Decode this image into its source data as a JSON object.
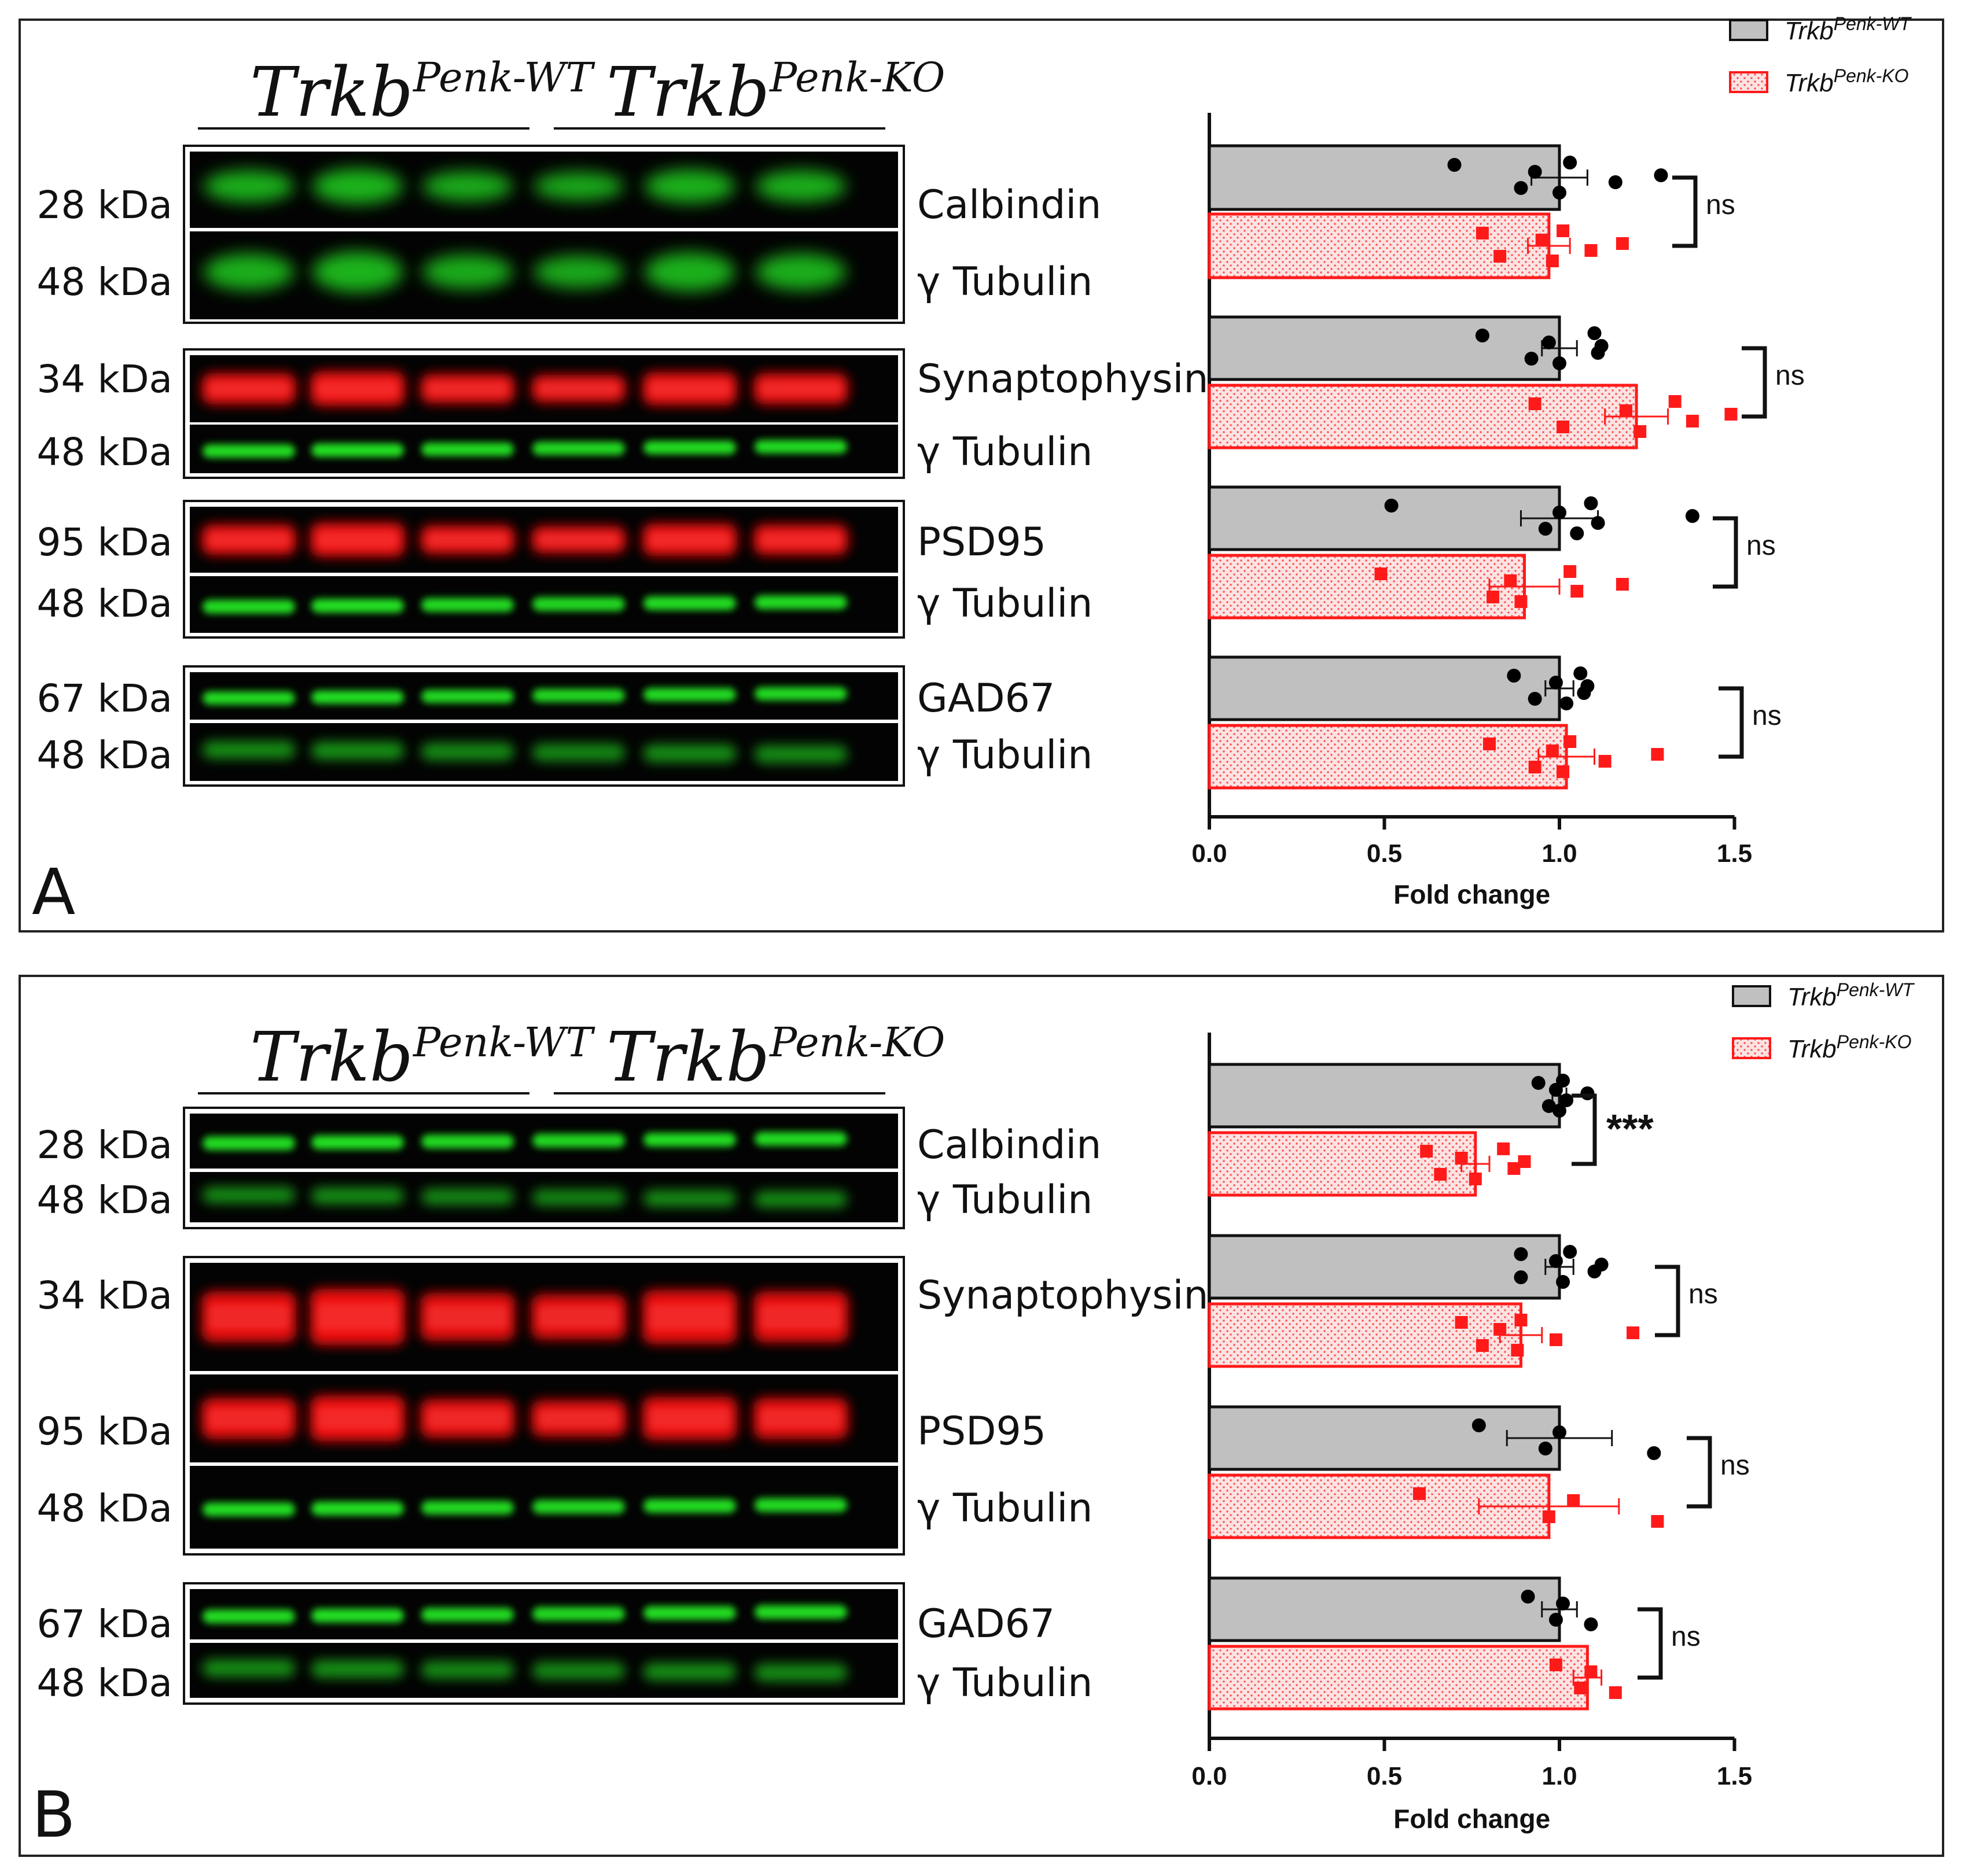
{
  "colors": {
    "wt_bar": "#c0c0c0",
    "ko_bar": "#f7d4d4",
    "ko_edge": "#ff1a1a",
    "wt_point": "#000000",
    "ko_point": "#ff1a1a",
    "green_band": "#22e022",
    "red_band": "#ee1010"
  },
  "genotypes": {
    "wt": {
      "base": "Trkb",
      "sup": "Penk-WT"
    },
    "ko": {
      "base": "Trkb",
      "sup": "Penk-KO"
    }
  },
  "panels": [
    {
      "label": "A",
      "blots": [
        {
          "mw": "28 kDa",
          "protein": "Calbindin",
          "color": "green",
          "style": "blob"
        },
        {
          "mw": "48 kDa",
          "protein": "γ Tubulin",
          "color": "green",
          "style": "blob"
        },
        {
          "mw": "34 kDa",
          "protein": "Synaptophysin",
          "color": "red",
          "style": "thick"
        },
        {
          "mw": "48 kDa",
          "protein": "γ Tubulin",
          "color": "green",
          "style": "thin"
        },
        {
          "mw": "95 kDa",
          "protein": "PSD95",
          "color": "red",
          "style": "thick"
        },
        {
          "mw": "48 kDa",
          "protein": "γ Tubulin",
          "color": "green",
          "style": "thin"
        },
        {
          "mw": "67 kDa",
          "protein": "GAD67",
          "color": "green",
          "style": "thin"
        },
        {
          "mw": "48 kDa",
          "protein": "γ Tubulin",
          "color": "green",
          "style": "soft"
        }
      ]
    },
    {
      "label": "B",
      "blots": [
        {
          "mw": "28 kDa",
          "protein": "Calbindin",
          "color": "green",
          "style": "thin"
        },
        {
          "mw": "48 kDa",
          "protein": "γ Tubulin",
          "color": "green",
          "style": "soft"
        },
        {
          "mw": "34 kDa",
          "protein": "Synaptophysin",
          "color": "red",
          "style": "thick"
        },
        {
          "mw": "95 kDa",
          "protein": "PSD95",
          "color": "red",
          "style": "thick"
        },
        {
          "mw": "48 kDa",
          "protein": "γ Tubulin",
          "color": "green",
          "style": "thin"
        },
        {
          "mw": "67 kDa",
          "protein": "GAD67",
          "color": "green",
          "style": "thin"
        },
        {
          "mw": "48 kDa",
          "protein": "γ Tubulin",
          "color": "green",
          "style": "soft"
        }
      ]
    }
  ],
  "chart_data": [
    {
      "type": "bar",
      "orientation": "horizontal",
      "panel": "A",
      "xlabel": "Fold change",
      "xlim": [
        0,
        1.5
      ],
      "xticks": [
        "0.0",
        "0.5",
        "1.0",
        "1.5"
      ],
      "legend": [
        "TrkbPenk-WT",
        "TrkbPenk-KO"
      ],
      "groups": [
        {
          "name": "Calbindin",
          "sig": "ns",
          "wt": {
            "mean": 1.0,
            "sem": 0.08,
            "points": [
              0.7,
              0.89,
              0.93,
              1.0,
              1.03,
              1.16,
              1.29
            ]
          },
          "ko": {
            "mean": 0.97,
            "sem": 0.06,
            "points": [
              0.78,
              0.83,
              0.95,
              0.98,
              1.01,
              1.09,
              1.18
            ]
          }
        },
        {
          "name": "Synaptophysin",
          "sig": "ns",
          "wt": {
            "mean": 1.0,
            "sem": 0.05,
            "points": [
              0.78,
              0.92,
              0.97,
              1.0,
              1.1,
              1.11,
              1.12
            ]
          },
          "ko": {
            "mean": 1.22,
            "sem": 0.09,
            "points": [
              0.93,
              1.01,
              1.19,
              1.23,
              1.33,
              1.38,
              1.49
            ]
          }
        },
        {
          "name": "PSD95",
          "sig": "ns",
          "wt": {
            "mean": 1.0,
            "sem": 0.11,
            "points": [
              0.52,
              0.96,
              1.0,
              1.05,
              1.09,
              1.11,
              1.38
            ]
          },
          "ko": {
            "mean": 0.9,
            "sem": 0.1,
            "points": [
              0.49,
              0.81,
              0.86,
              0.89,
              1.03,
              1.05,
              1.18
            ]
          }
        },
        {
          "name": "GAD67",
          "sig": "ns",
          "wt": {
            "mean": 1.0,
            "sem": 0.04,
            "points": [
              0.87,
              0.93,
              0.99,
              1.02,
              1.06,
              1.07,
              1.08
            ]
          },
          "ko": {
            "mean": 1.02,
            "sem": 0.08,
            "points": [
              0.8,
              0.93,
              0.98,
              1.01,
              1.03,
              1.13,
              1.28
            ]
          }
        }
      ]
    },
    {
      "type": "bar",
      "orientation": "horizontal",
      "panel": "B",
      "xlabel": "Fold change",
      "xlim": [
        0,
        1.5
      ],
      "xticks": [
        "0.0",
        "0.5",
        "1.0",
        "1.5"
      ],
      "legend": [
        "TrkbPenk-WT",
        "TrkbPenk-KO"
      ],
      "groups": [
        {
          "name": "Calbindin",
          "sig": "***",
          "wt": {
            "mean": 1.0,
            "sem": 0.02,
            "points": [
              0.94,
              0.97,
              0.99,
              1.0,
              1.01,
              1.02,
              1.08
            ]
          },
          "ko": {
            "mean": 0.76,
            "sem": 0.04,
            "points": [
              0.62,
              0.66,
              0.72,
              0.76,
              0.84,
              0.87,
              0.9
            ]
          }
        },
        {
          "name": "Synaptophysin",
          "sig": "ns",
          "wt": {
            "mean": 1.0,
            "sem": 0.04,
            "points": [
              0.89,
              0.89,
              0.99,
              1.01,
              1.03,
              1.1,
              1.12
            ]
          },
          "ko": {
            "mean": 0.89,
            "sem": 0.06,
            "points": [
              0.72,
              0.78,
              0.83,
              0.88,
              0.89,
              0.99,
              1.21
            ]
          }
        },
        {
          "name": "PSD95",
          "sig": "ns",
          "wt": {
            "mean": 1.0,
            "sem": 0.15,
            "points": [
              0.77,
              0.96,
              1.0,
              1.27
            ]
          },
          "ko": {
            "mean": 0.97,
            "sem": 0.2,
            "points": [
              0.6,
              0.97,
              1.04,
              1.28
            ]
          }
        },
        {
          "name": "GAD67",
          "sig": "ns",
          "wt": {
            "mean": 1.0,
            "sem": 0.05,
            "points": [
              0.91,
              0.99,
              1.01,
              1.09
            ]
          },
          "ko": {
            "mean": 1.08,
            "sem": 0.04,
            "points": [
              0.99,
              1.06,
              1.09,
              1.16
            ]
          }
        }
      ]
    }
  ]
}
